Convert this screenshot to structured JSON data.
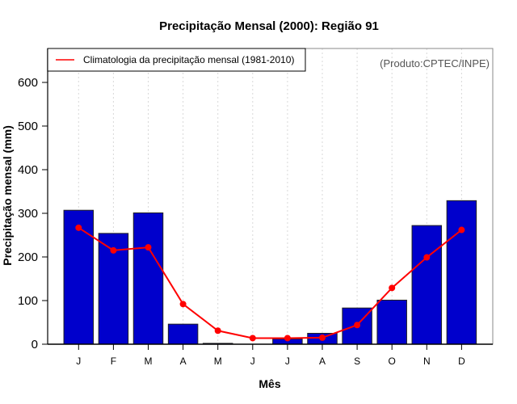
{
  "chart_data": {
    "type": "bar",
    "title": "Precipitação Mensal (2000): Região 91",
    "xlabel": "Mês",
    "ylabel": "Precipitação mensal (mm)",
    "credit": "(Produto:CPTEC/INPE)",
    "categories": [
      "J",
      "F",
      "M",
      "A",
      "M",
      "J",
      "J",
      "A",
      "S",
      "O",
      "N",
      "D"
    ],
    "ylim": [
      0,
      650
    ],
    "yticks": [
      0,
      100,
      200,
      300,
      400,
      500,
      600
    ],
    "grid": "vertical dashed at categories",
    "legend_position": "top-left",
    "series": [
      {
        "name": "Precipitação mensal (2000)",
        "kind": "bar",
        "color": "#0000CC",
        "values": [
          307,
          254,
          301,
          46,
          2,
          0,
          12,
          25,
          83,
          101,
          272,
          329
        ]
      },
      {
        "name": "Climatologia da precipitação mensal (1981-2010)",
        "kind": "line",
        "color": "#FF0000",
        "values": [
          267,
          215,
          222,
          92,
          31,
          14,
          14,
          15,
          44,
          129,
          199,
          262
        ]
      }
    ]
  }
}
